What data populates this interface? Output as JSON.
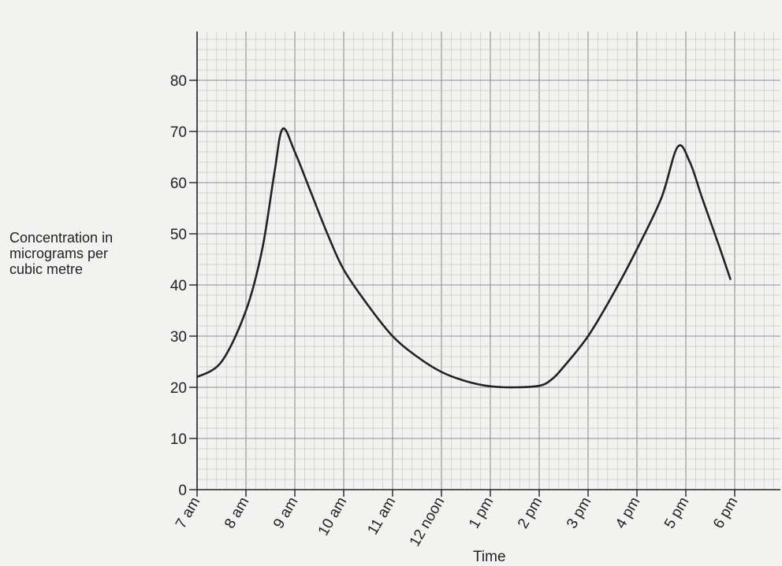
{
  "chart_data": {
    "type": "line",
    "title": "",
    "xlabel": "Time",
    "ylabel_lines": [
      "Concentration in",
      "micrograms per",
      "cubic metre"
    ],
    "x_ticks": [
      "7 am",
      "8 am",
      "9 am",
      "10 am",
      "11 am",
      "12 noon",
      "1 pm",
      "2 pm",
      "3 pm",
      "4 pm",
      "5 pm",
      "6 pm"
    ],
    "y_ticks": [
      0,
      10,
      20,
      30,
      40,
      50,
      60,
      70,
      80
    ],
    "xlim_hours": [
      7,
      18.7
    ],
    "ylim": [
      0,
      90
    ],
    "grid": true,
    "series": [
      {
        "x": [
          "7:00",
          "7:30",
          "8:00",
          "8:20",
          "8:35",
          "8:45",
          "9:00",
          "9:20",
          "9:40",
          "10:00",
          "10:30",
          "11:00",
          "11:30",
          "12:00",
          "12:30",
          "13:00",
          "13:30",
          "14:00",
          "14:15",
          "14:30",
          "15:00",
          "15:30",
          "16:00",
          "16:30",
          "16:50",
          "17:05",
          "17:20",
          "17:40",
          "17:55"
        ],
        "y": [
          22,
          25,
          35,
          47,
          62,
          70.5,
          66,
          58,
          50,
          43,
          36,
          30,
          26,
          23,
          21.2,
          20.2,
          20,
          20.3,
          21.5,
          24,
          30,
          38,
          47,
          57,
          67,
          64,
          57,
          48,
          41
        ],
        "color": "#222222"
      }
    ]
  }
}
